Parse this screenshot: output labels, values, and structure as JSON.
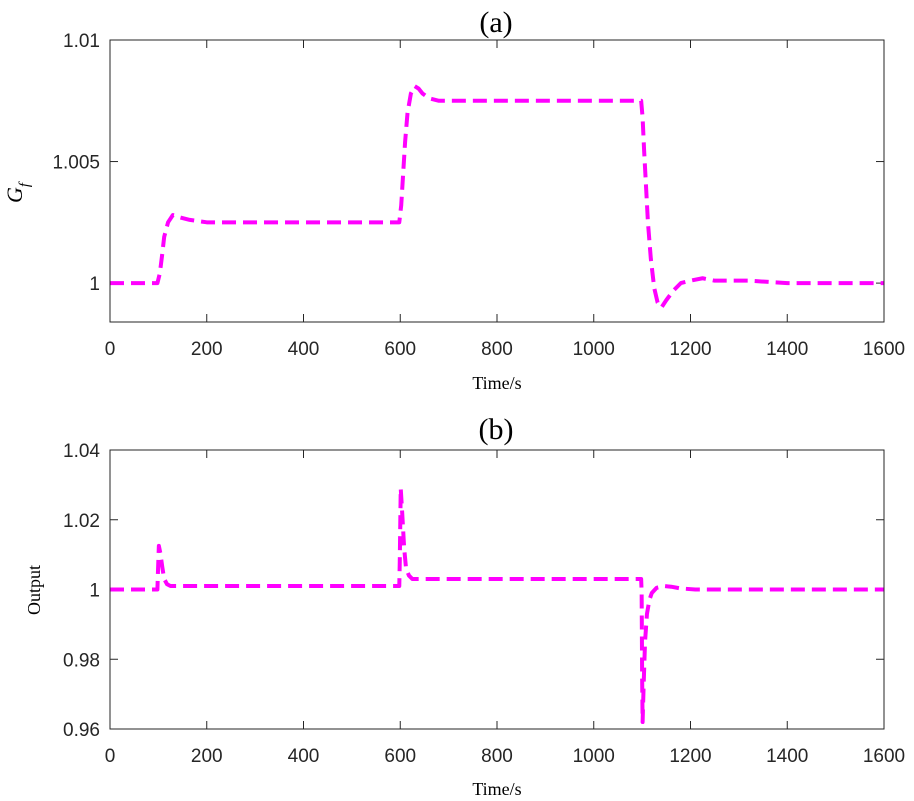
{
  "chart_data": [
    {
      "type": "line",
      "title": "(a)",
      "xlabel": "Time/s",
      "ylabel_symbol": "G",
      "ylabel_subscript": "f",
      "xlim": [
        0,
        1600
      ],
      "ylim": [
        0.9984,
        1.01
      ],
      "xticks": [
        0,
        200,
        400,
        600,
        800,
        1000,
        1200,
        1400,
        1600
      ],
      "yticks": [
        1,
        1.005,
        1.01
      ],
      "ytick_labels": [
        "1",
        "1.005",
        "1.01"
      ],
      "series": [
        {
          "name": "G_f",
          "color": "#ff00ff",
          "x": [
            0,
            98,
            103,
            108,
            112,
            120,
            130,
            145,
            165,
            200,
            250,
            300,
            400,
            500,
            598,
            602,
            606,
            610,
            615,
            622,
            630,
            638,
            646,
            660,
            680,
            720,
            800,
            900,
            1000,
            1098,
            1101,
            1104,
            1108,
            1112,
            1118,
            1125,
            1132,
            1140,
            1150,
            1165,
            1180,
            1200,
            1225,
            1250,
            1280,
            1320,
            1400,
            1500,
            1600
          ],
          "y": [
            1.0,
            1.0,
            1.0004,
            1.0012,
            1.0019,
            1.0025,
            1.0028,
            1.0027,
            1.0026,
            1.0025,
            1.0025,
            1.0025,
            1.0025,
            1.0025,
            1.0025,
            1.0032,
            1.0045,
            1.0058,
            1.007,
            1.0078,
            1.0081,
            1.008,
            1.0078,
            1.0076,
            1.0075,
            1.0075,
            1.0075,
            1.0075,
            1.0075,
            1.0075,
            1.0068,
            1.0055,
            1.004,
            1.0025,
            1.001,
            0.9998,
            0.9992,
            0.999,
            0.9993,
            0.9997,
            1.0,
            1.0001,
            1.0002,
            1.0001,
            1.0001,
            1.0001,
            1.0,
            1.0,
            1.0
          ]
        }
      ]
    },
    {
      "type": "line",
      "title": "(b)",
      "xlabel": "Time/s",
      "ylabel": "Output",
      "xlim": [
        0,
        1600
      ],
      "ylim": [
        0.96,
        1.04
      ],
      "xticks": [
        0,
        200,
        400,
        600,
        800,
        1000,
        1200,
        1400,
        1600
      ],
      "yticks": [
        0.96,
        0.98,
        1,
        1.02,
        1.04
      ],
      "ytick_labels": [
        "0.96",
        "0.98",
        "1",
        "1.02",
        "1.04"
      ],
      "series": [
        {
          "name": "Output",
          "color": "#ff00ff",
          "x": [
            0,
            98,
            99,
            101,
            104,
            108,
            112,
            118,
            125,
            140,
            200,
            300,
            400,
            500,
            598,
            599,
            601,
            604,
            608,
            612,
            618,
            625,
            640,
            700,
            800,
            900,
            1000,
            1098,
            1099,
            1100,
            1101,
            1103,
            1106,
            1110,
            1115,
            1120,
            1130,
            1145,
            1160,
            1180,
            1210,
            1250,
            1300,
            1400,
            1500,
            1600
          ],
          "y": [
            1.0,
            1.0,
            1.0045,
            1.0125,
            1.0105,
            1.0065,
            1.003,
            1.0015,
            1.001,
            1.001,
            1.001,
            1.001,
            1.001,
            1.001,
            1.001,
            1.008,
            1.029,
            1.022,
            1.012,
            1.006,
            1.004,
            1.003,
            1.003,
            1.003,
            1.003,
            1.003,
            1.003,
            1.003,
            0.999,
            0.975,
            0.962,
            0.972,
            0.985,
            0.993,
            0.997,
            0.999,
            1.0005,
            1.001,
            1.0008,
            1.0003,
            1.0,
            1.0,
            1.0,
            1.0,
            1.0,
            1.0
          ]
        }
      ]
    }
  ]
}
